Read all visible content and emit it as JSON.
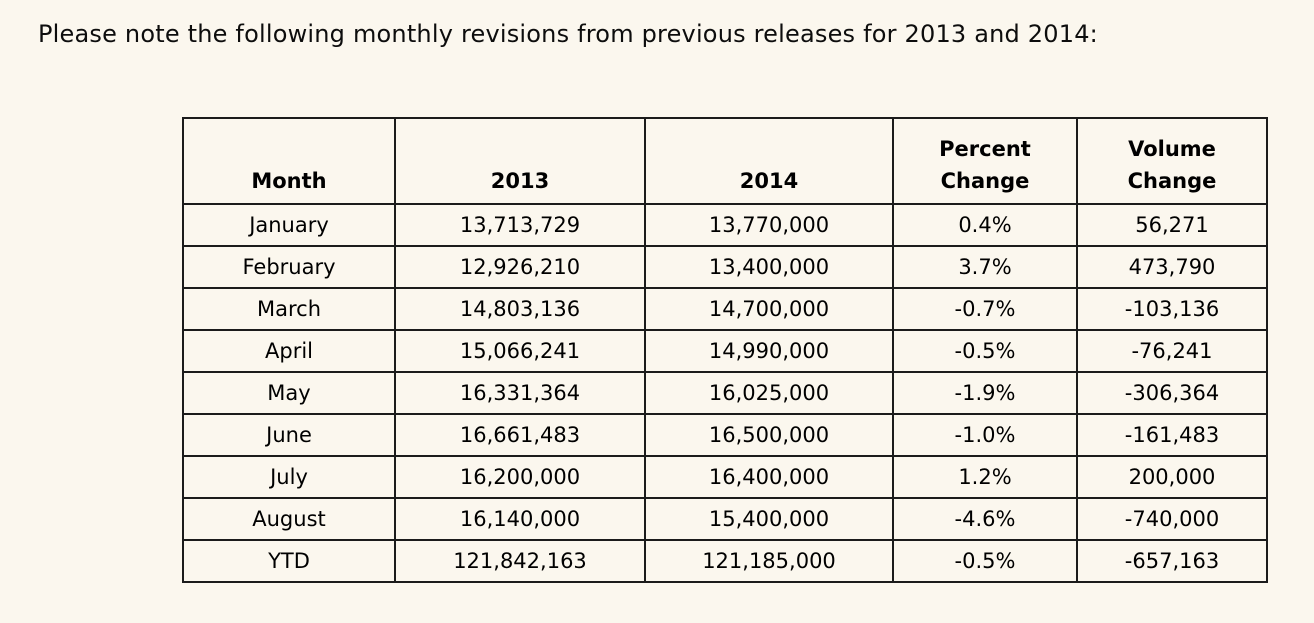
{
  "note": "Please note the following monthly revisions from previous releases for 2013 and 2014:",
  "table": {
    "headers": [
      "Month",
      "2013",
      "2014",
      "Percent Change",
      "Volume Change"
    ],
    "rows": [
      [
        "January",
        "13,713,729",
        "13,770,000",
        "0.4%",
        "56,271"
      ],
      [
        "February",
        "12,926,210",
        "13,400,000",
        "3.7%",
        "473,790"
      ],
      [
        "March",
        "14,803,136",
        "14,700,000",
        "-0.7%",
        "-103,136"
      ],
      [
        "April",
        "15,066,241",
        "14,990,000",
        "-0.5%",
        "-76,241"
      ],
      [
        "May",
        "16,331,364",
        "16,025,000",
        "-1.9%",
        "-306,364"
      ],
      [
        "June",
        "16,661,483",
        "16,500,000",
        "-1.0%",
        "-161,483"
      ],
      [
        "July",
        "16,200,000",
        "16,400,000",
        "1.2%",
        "200,000"
      ],
      [
        "August",
        "16,140,000",
        "15,400,000",
        "-4.6%",
        "-740,000"
      ],
      [
        "YTD",
        "121,842,163",
        "121,185,000",
        "-0.5%",
        "-657,163"
      ]
    ]
  },
  "colors": {
    "background": "#fbf7ee",
    "border": "#1b1b1b",
    "text": "#000000"
  }
}
